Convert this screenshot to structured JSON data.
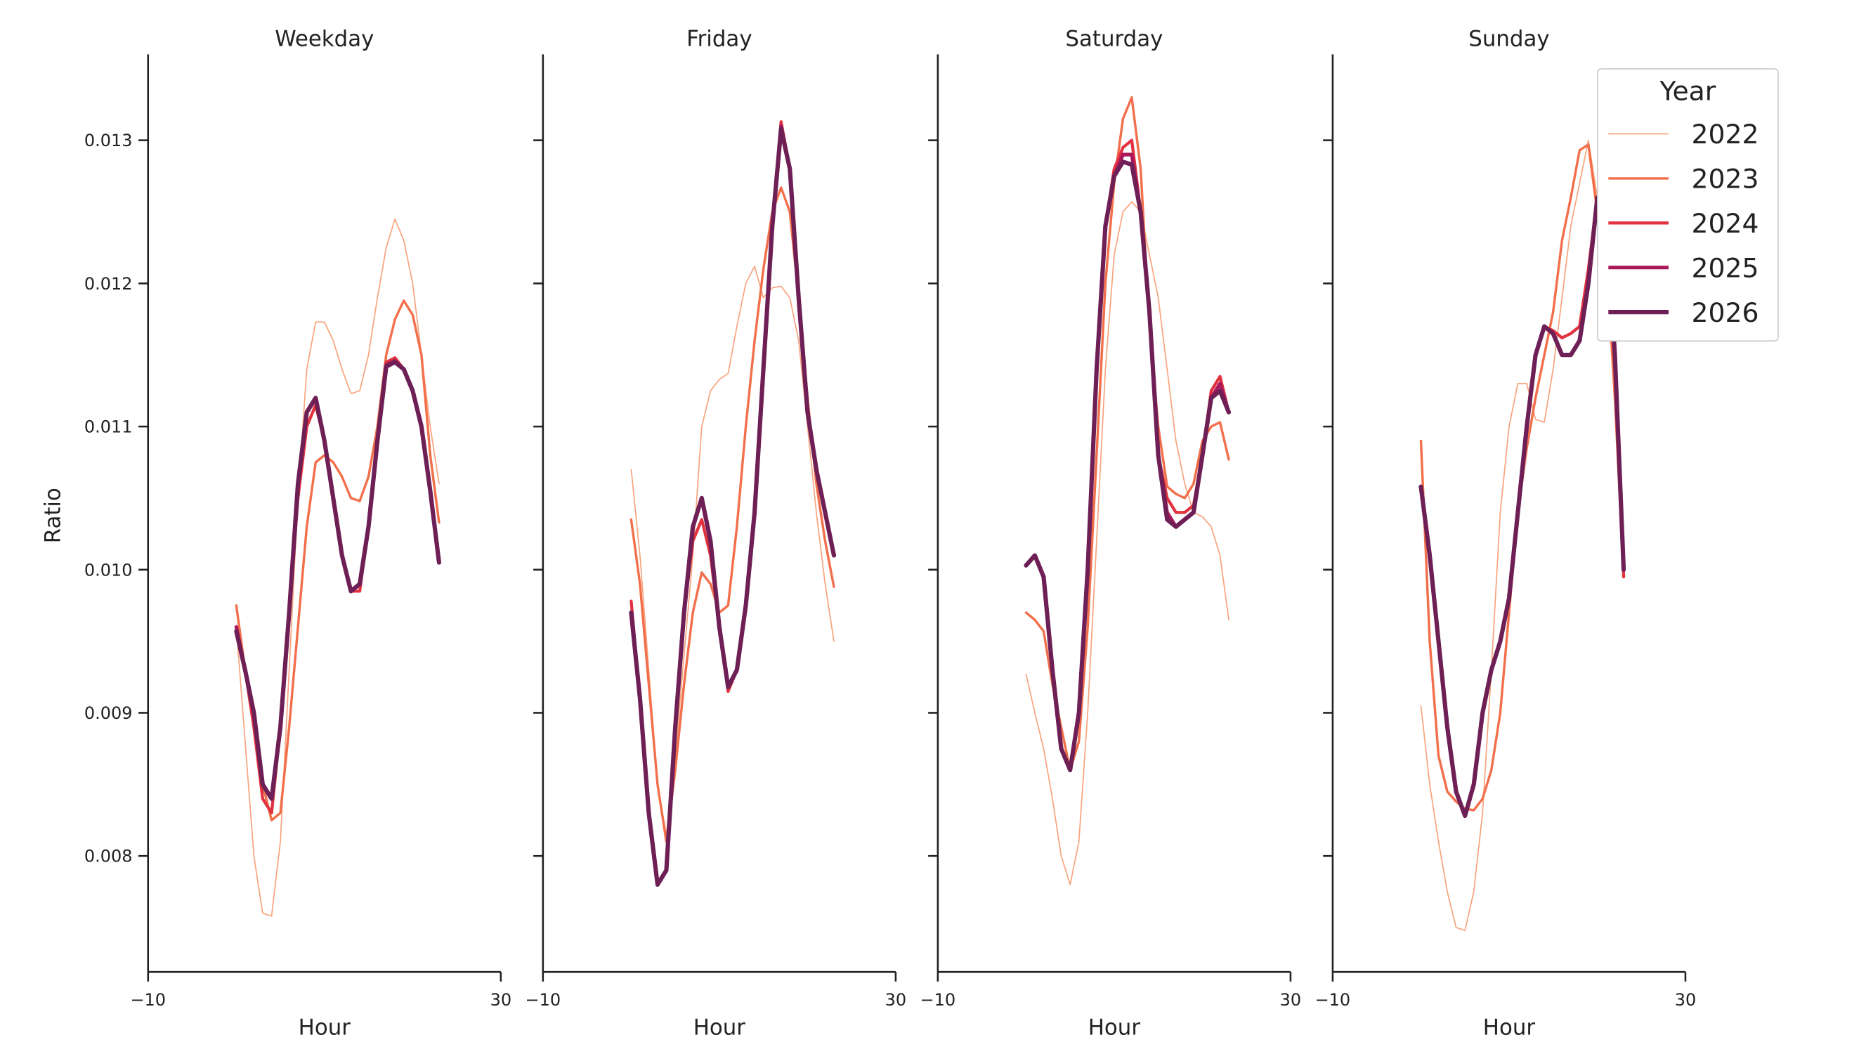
{
  "chart_data": {
    "type": "line",
    "ylabel": "Ratio",
    "xlabel": "Hour",
    "xlim": [
      -10,
      30
    ],
    "ylim": [
      0.00719,
      0.0136
    ],
    "x_ticks": [
      -10,
      30
    ],
    "x_tick_labels": [
      "−10",
      "30"
    ],
    "y_ticks": [
      0.008,
      0.009,
      0.01,
      0.011,
      0.012,
      0.013
    ],
    "y_tick_labels": [
      "0.008",
      "0.009",
      "0.010",
      "0.011",
      "0.012",
      "0.013"
    ],
    "grid": false,
    "legend": {
      "title": "Year",
      "placement": "top-right"
    },
    "x": [
      0,
      1,
      2,
      3,
      4,
      5,
      6,
      7,
      8,
      9,
      10,
      11,
      12,
      13,
      14,
      15,
      16,
      17,
      18,
      19,
      20,
      21,
      22,
      23
    ],
    "series_styles": [
      {
        "name": "2022",
        "color": "#f8a47e"
      },
      {
        "name": "2023",
        "color": "#f26f4c"
      },
      {
        "name": "2024",
        "color": "#e0323f"
      },
      {
        "name": "2025",
        "color": "#a9185a"
      },
      {
        "name": "2026",
        "color": "#6d1f56"
      }
    ],
    "panels": [
      {
        "title": "Weekday",
        "series": [
          {
            "name": "2022",
            "values": [
              0.0096,
              0.0088,
              0.008,
              0.0076,
              0.00758,
              0.0081,
              0.0093,
              0.0105,
              0.0114,
              0.01173,
              0.01173,
              0.0116,
              0.0114,
              0.01123,
              0.01125,
              0.0115,
              0.0119,
              0.01225,
              0.01245,
              0.0123,
              0.012,
              0.0115,
              0.011,
              0.0106
            ]
          },
          {
            "name": "2023",
            "values": [
              0.00975,
              0.0093,
              0.0089,
              0.0085,
              0.00825,
              0.0083,
              0.0089,
              0.0096,
              0.0103,
              0.01075,
              0.0108,
              0.01075,
              0.01065,
              0.0105,
              0.01048,
              0.01065,
              0.011,
              0.0115,
              0.01175,
              0.01188,
              0.01178,
              0.0115,
              0.0108,
              0.01033
            ]
          },
          {
            "name": "2024",
            "values": [
              0.0096,
              0.0093,
              0.0089,
              0.0084,
              0.0083,
              0.0089,
              0.0097,
              0.0105,
              0.011,
              0.01115,
              0.0109,
              0.0105,
              0.0101,
              0.00985,
              0.00985,
              0.0103,
              0.0109,
              0.01145,
              0.01148,
              0.0114,
              0.01125,
              0.011,
              0.01055,
              0.01005
            ]
          },
          {
            "name": "2025",
            "values": [
              0.0096,
              0.0093,
              0.009,
              0.0085,
              0.0084,
              0.0089,
              0.0097,
              0.0106,
              0.0111,
              0.0112,
              0.0109,
              0.0105,
              0.0101,
              0.00985,
              0.0099,
              0.0103,
              0.0109,
              0.01143,
              0.01146,
              0.0114,
              0.01125,
              0.011,
              0.01055,
              0.01005
            ]
          },
          {
            "name": "2026",
            "values": [
              0.00957,
              0.0093,
              0.009,
              0.0085,
              0.0084,
              0.0089,
              0.0097,
              0.0106,
              0.0111,
              0.0112,
              0.0109,
              0.0105,
              0.0101,
              0.00985,
              0.0099,
              0.0103,
              0.0109,
              0.01142,
              0.01145,
              0.0114,
              0.01125,
              0.011,
              0.01055,
              0.01005
            ]
          }
        ]
      },
      {
        "title": "Friday",
        "series": [
          {
            "name": "2022",
            "values": [
              0.0107,
              0.0101,
              0.0093,
              0.0085,
              0.00815,
              0.0087,
              0.0094,
              0.0101,
              0.011,
              0.01125,
              0.01133,
              0.01137,
              0.0117,
              0.012,
              0.01212,
              0.0119,
              0.01197,
              0.01198,
              0.0119,
              0.0116,
              0.011,
              0.0104,
              0.0099,
              0.0095
            ]
          },
          {
            "name": "2023",
            "values": [
              0.01035,
              0.0099,
              0.0092,
              0.0085,
              0.0081,
              0.0086,
              0.0092,
              0.0097,
              0.00998,
              0.0099,
              0.0097,
              0.00975,
              0.0103,
              0.011,
              0.0116,
              0.0121,
              0.0125,
              0.01267,
              0.0125,
              0.0119,
              0.0112,
              0.0106,
              0.0102,
              0.00988
            ]
          },
          {
            "name": "2024",
            "values": [
              0.00978,
              0.0091,
              0.0083,
              0.0078,
              0.0079,
              0.0089,
              0.0097,
              0.0102,
              0.01035,
              0.0101,
              0.0096,
              0.00915,
              0.0093,
              0.00975,
              0.0104,
              0.0114,
              0.0124,
              0.01313,
              0.0128,
              0.0119,
              0.0111,
              0.0107,
              0.0104,
              0.0101
            ]
          },
          {
            "name": "2025",
            "values": [
              0.0097,
              0.0091,
              0.0083,
              0.0078,
              0.0079,
              0.0089,
              0.0097,
              0.0103,
              0.0105,
              0.0102,
              0.0096,
              0.00918,
              0.0093,
              0.00975,
              0.0104,
              0.0114,
              0.0124,
              0.0131,
              0.0128,
              0.0119,
              0.0111,
              0.0107,
              0.0104,
              0.0101
            ]
          },
          {
            "name": "2026",
            "values": [
              0.0097,
              0.0091,
              0.0083,
              0.0078,
              0.0079,
              0.0089,
              0.0097,
              0.0103,
              0.0105,
              0.0102,
              0.0096,
              0.00918,
              0.0093,
              0.00975,
              0.0104,
              0.0114,
              0.0124,
              0.01308,
              0.0128,
              0.0119,
              0.0111,
              0.0107,
              0.0104,
              0.0101
            ]
          }
        ]
      },
      {
        "title": "Saturday",
        "series": [
          {
            "name": "2022",
            "values": [
              0.00927,
              0.009,
              0.00875,
              0.0084,
              0.008,
              0.0078,
              0.0081,
              0.009,
              0.0102,
              0.0114,
              0.0122,
              0.0125,
              0.01257,
              0.0125,
              0.0122,
              0.0119,
              0.0114,
              0.0109,
              0.0106,
              0.0104,
              0.01037,
              0.0103,
              0.0101,
              0.00965
            ]
          },
          {
            "name": "2023",
            "values": [
              0.0097,
              0.00965,
              0.00957,
              0.0092,
              0.0089,
              0.0086,
              0.0088,
              0.0096,
              0.0108,
              0.012,
              0.0127,
              0.01315,
              0.0133,
              0.0128,
              0.0117,
              0.011,
              0.01058,
              0.01053,
              0.0105,
              0.0106,
              0.0109,
              0.011,
              0.01103,
              0.01077
            ]
          },
          {
            "name": "2024",
            "values": [
              0.01003,
              0.0101,
              0.00995,
              0.0093,
              0.00875,
              0.0086,
              0.009,
              0.01,
              0.0114,
              0.0124,
              0.0128,
              0.01295,
              0.013,
              0.0125,
              0.0118,
              0.0108,
              0.0105,
              0.0104,
              0.0104,
              0.01045,
              0.0108,
              0.01125,
              0.01135,
              0.0111
            ]
          },
          {
            "name": "2025",
            "values": [
              0.01003,
              0.0101,
              0.00995,
              0.0093,
              0.00875,
              0.0086,
              0.009,
              0.01,
              0.0114,
              0.0124,
              0.01275,
              0.0129,
              0.0129,
              0.0125,
              0.0118,
              0.0108,
              0.0104,
              0.0103,
              0.01035,
              0.0104,
              0.0108,
              0.0112,
              0.0113,
              0.0111
            ]
          },
          {
            "name": "2026",
            "values": [
              0.01003,
              0.0101,
              0.00995,
              0.0093,
              0.00875,
              0.0086,
              0.009,
              0.01,
              0.0114,
              0.0124,
              0.01275,
              0.01285,
              0.01283,
              0.0125,
              0.0118,
              0.0108,
              0.01035,
              0.0103,
              0.01035,
              0.0104,
              0.0108,
              0.0112,
              0.01125,
              0.0111
            ]
          }
        ]
      },
      {
        "title": "Sunday",
        "series": [
          {
            "name": "2022",
            "values": [
              0.00905,
              0.0085,
              0.0081,
              0.00775,
              0.0075,
              0.00748,
              0.00775,
              0.0083,
              0.0093,
              0.0104,
              0.011,
              0.0113,
              0.0113,
              0.01105,
              0.01103,
              0.0114,
              0.0119,
              0.0124,
              0.0127,
              0.013,
              0.0126,
              0.0121,
              0.0112,
              0.01
            ]
          },
          {
            "name": "2023",
            "values": [
              0.0109,
              0.0095,
              0.0087,
              0.00845,
              0.00838,
              0.00833,
              0.00832,
              0.0084,
              0.0086,
              0.009,
              0.0097,
              0.0104,
              0.01085,
              0.0112,
              0.0115,
              0.0118,
              0.0123,
              0.0126,
              0.01293,
              0.01297,
              0.0125,
              0.0122,
              0.0112,
              0.00995
            ]
          },
          {
            "name": "2024",
            "values": [
              0.01058,
              0.0101,
              0.0095,
              0.0089,
              0.00845,
              0.00828,
              0.0085,
              0.009,
              0.0093,
              0.0095,
              0.0098,
              0.0104,
              0.011,
              0.0115,
              0.0117,
              0.01167,
              0.01162,
              0.01165,
              0.0117,
              0.0121,
              0.0126,
              0.0125,
              0.0115,
              0.00995
            ]
          },
          {
            "name": "2025",
            "values": [
              0.01058,
              0.0101,
              0.0095,
              0.0089,
              0.00845,
              0.00828,
              0.0085,
              0.009,
              0.0093,
              0.0095,
              0.0098,
              0.0104,
              0.011,
              0.0115,
              0.0117,
              0.01165,
              0.0115,
              0.0115,
              0.0116,
              0.012,
              0.0126,
              0.0125,
              0.0115,
              0.01
            ]
          },
          {
            "name": "2026",
            "values": [
              0.01058,
              0.0101,
              0.0095,
              0.0089,
              0.00845,
              0.00828,
              0.0085,
              0.009,
              0.0093,
              0.0095,
              0.0098,
              0.0104,
              0.011,
              0.0115,
              0.0117,
              0.01165,
              0.0115,
              0.0115,
              0.0116,
              0.012,
              0.0126,
              0.0125,
              0.0115,
              0.01
            ]
          }
        ]
      }
    ]
  }
}
